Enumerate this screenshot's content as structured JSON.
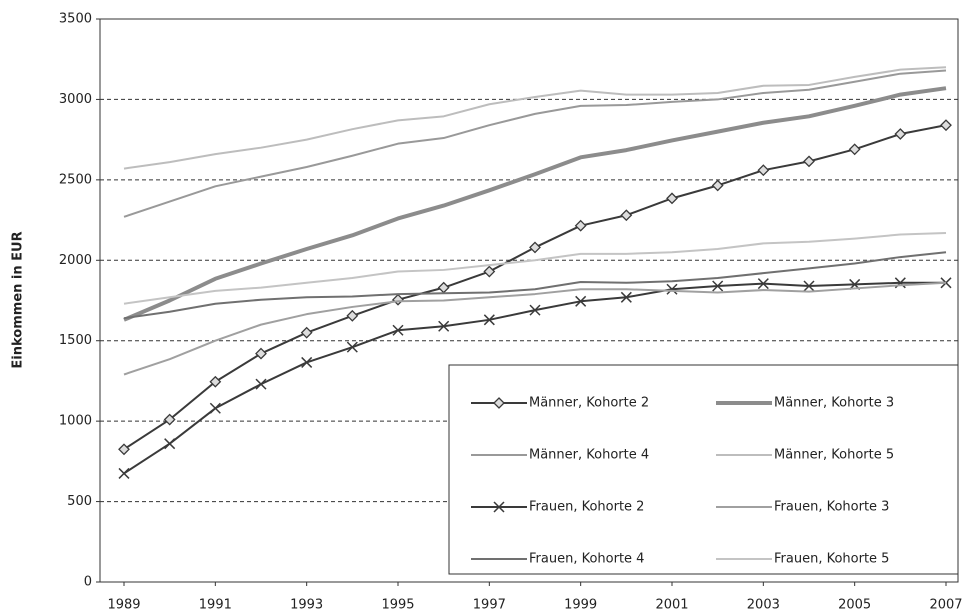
{
  "chart_data": {
    "type": "line",
    "y_label": "Einkommen in EUR",
    "x": [
      1989,
      1990,
      1991,
      1992,
      1993,
      1994,
      1995,
      1996,
      1997,
      1998,
      1999,
      2000,
      2001,
      2002,
      2003,
      2004,
      2005,
      2006,
      2007
    ],
    "xlim": [
      1989,
      2007
    ],
    "xticks": [
      1989,
      1991,
      1993,
      1995,
      1997,
      1999,
      2001,
      2003,
      2005,
      2007
    ],
    "ylim": [
      0,
      3500
    ],
    "yticks": [
      0,
      500,
      1000,
      1500,
      2000,
      2500,
      3000,
      3500
    ],
    "grid": true,
    "legend": "lower right",
    "series": [
      {
        "name": "Männer, Kohorte 2",
        "color": "#3a3a3a",
        "width": 2,
        "marker": "diamond",
        "values": [
          825,
          1010,
          1245,
          1420,
          1550,
          1655,
          1755,
          1830,
          1930,
          2080,
          2215,
          2280,
          2385,
          2465,
          2560,
          2615,
          2690,
          2785,
          2840
        ]
      },
      {
        "name": "Männer, Kohorte 3",
        "color": "#8c8c8c",
        "width": 4,
        "values": [
          1630,
          1750,
          1885,
          1980,
          2070,
          2155,
          2260,
          2340,
          2435,
          2535,
          2640,
          2685,
          2745,
          2800,
          2855,
          2895,
          2960,
          3030,
          3070
        ]
      },
      {
        "name": "Männer, Kohorte 4",
        "color": "#999999",
        "width": 2,
        "values": [
          2270,
          2365,
          2460,
          2520,
          2580,
          2650,
          2725,
          2760,
          2840,
          2910,
          2960,
          2965,
          2985,
          3000,
          3040,
          3060,
          3110,
          3160,
          3180
        ]
      },
      {
        "name": "Männer, Kohorte 5",
        "color": "#bdbdbd",
        "width": 2,
        "values": [
          2570,
          2610,
          2660,
          2700,
          2750,
          2815,
          2870,
          2895,
          2970,
          3015,
          3055,
          3030,
          3030,
          3040,
          3085,
          3090,
          3140,
          3185,
          3200
        ]
      },
      {
        "name": "Frauen, Kohorte 2",
        "color": "#3a3a3a",
        "width": 2,
        "marker": "x",
        "values": [
          675,
          860,
          1080,
          1230,
          1365,
          1460,
          1565,
          1590,
          1630,
          1690,
          1745,
          1770,
          1820,
          1840,
          1855,
          1840,
          1850,
          1860,
          1860
        ]
      },
      {
        "name": "Frauen, Kohorte 3",
        "color": "#a0a0a0",
        "width": 2,
        "values": [
          1290,
          1385,
          1500,
          1600,
          1665,
          1710,
          1745,
          1750,
          1770,
          1790,
          1820,
          1820,
          1810,
          1800,
          1815,
          1805,
          1825,
          1845,
          1860
        ]
      },
      {
        "name": "Frauen, Kohorte 4",
        "color": "#707070",
        "width": 2,
        "values": [
          1640,
          1680,
          1730,
          1755,
          1770,
          1775,
          1790,
          1795,
          1800,
          1820,
          1865,
          1860,
          1870,
          1890,
          1920,
          1950,
          1980,
          2020,
          2050
        ]
      },
      {
        "name": "Frauen, Kohorte 5",
        "color": "#c4c4c4",
        "width": 2,
        "values": [
          1730,
          1770,
          1810,
          1830,
          1860,
          1890,
          1930,
          1940,
          1970,
          2000,
          2040,
          2040,
          2050,
          2070,
          2105,
          2115,
          2135,
          2160,
          2170
        ]
      }
    ]
  }
}
